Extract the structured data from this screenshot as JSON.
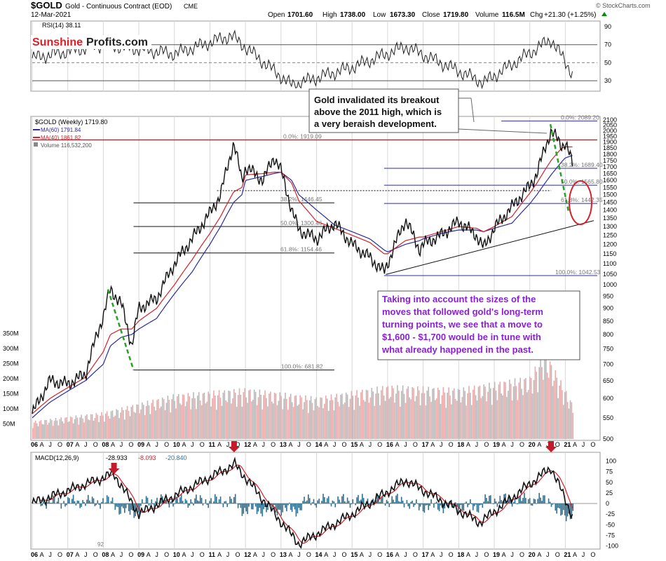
{
  "header": {
    "symbol": "$GOLD",
    "description": "Gold - Continuous Contract (EOD)",
    "exchange": "CME",
    "date": "12-Mar-2021",
    "open_label": "Open",
    "open": "1701.60",
    "high_label": "High",
    "high": "1738.00",
    "low_label": "Low",
    "low": "1673.30",
    "close_label": "Close",
    "close": "1719.80",
    "volume_label": "Volume",
    "volume": "116.5M",
    "chg_label": "Chg",
    "chg": "+21.30 (+1.25%)",
    "chg_icon": "triangle-up-icon",
    "source": "© StockCharts.com"
  },
  "brand": {
    "part1": "Sunshine",
    "part2": "Profits.com",
    "color1": "#e31b23",
    "color2": "#222222"
  },
  "rsi": {
    "label": "RSI(14) 38.11",
    "ticks": [
      "90",
      "70",
      "50",
      "30"
    ]
  },
  "legend": {
    "gold": "$GOLD (Weekly) 1719.80",
    "ma60": "MA(60) 1791.84",
    "ma40": "MA(40) 1861.82",
    "volume": "Volume 116,532,200",
    "ma60_color": "#2b2b9f",
    "ma40_color": "#d6202a"
  },
  "annotations": {
    "top_note": "Gold invalidated its breakout above the 2011 high, which is a very beraish development.",
    "bottom_note": "Taking into account the sizes of the moves that followed gold's long-term turning points, we see that a move to $1,600 - $1,700 would be in tune with what already happened in the past.",
    "note_color": "#8a1fd6"
  },
  "fib_sets": {
    "old": [
      "0.0%: 1919.09",
      "38.2%: 1446.45",
      "50.0%: 1300.46",
      "61.8%: 1154.46",
      "100.0%: 681.82"
    ],
    "new": [
      "0.0%: 2089.20",
      "38.2%: 1689.40",
      "50.0%: 1565.80",
      "61.8%: 1442.35",
      "100.0%: 1042.53"
    ]
  },
  "price_ticks": [
    "2100",
    "2050",
    "2000",
    "1950",
    "1900",
    "1850",
    "1800",
    "1750",
    "1700",
    "1650",
    "1600",
    "1550",
    "1500",
    "1450",
    "1400",
    "1350",
    "1300",
    "1250",
    "1200",
    "1150",
    "1100",
    "1050",
    "1000",
    "950",
    "900",
    "850",
    "800",
    "750",
    "700",
    "650",
    "600",
    "550",
    "500"
  ],
  "volume_ticks": [
    "350M",
    "300M",
    "250M",
    "200M",
    "150M",
    "100M",
    "50M"
  ],
  "macd": {
    "label_prefix": "MACD(12,26,9)",
    "v1": "-28.933",
    "v2": "-8.093",
    "v3": "-20.840",
    "ticks": [
      "100",
      "75",
      "50",
      "25",
      "0",
      "-25",
      "-50",
      "-75",
      "-100"
    ],
    "low_marker": "92"
  },
  "x_axis": {
    "labels": [
      "06",
      "A",
      "J",
      "O",
      "07",
      "A",
      "J",
      "O",
      "08",
      "A",
      "J",
      "O",
      "09",
      "A",
      "J",
      "O",
      "10",
      "A",
      "J",
      "O",
      "11",
      "A",
      "J",
      "O",
      "12",
      "A",
      "J",
      "O",
      "13",
      "A",
      "J",
      "O",
      "14",
      "A",
      "J",
      "O",
      "15",
      "A",
      "J",
      "O",
      "16",
      "A",
      "J",
      "O",
      "17",
      "A",
      "J",
      "O",
      "18",
      "A",
      "J",
      "O",
      "19",
      "A",
      "J",
      "O",
      "20",
      "A",
      "J",
      "O",
      "21",
      "A",
      "J",
      "O"
    ]
  },
  "chart_data": {
    "type": "line",
    "title": "$GOLD Gold - Continuous Contract (EOD)",
    "x": [
      2006.0,
      2006.5,
      2007.0,
      2007.5,
      2008.0,
      2008.2,
      2008.5,
      2008.8,
      2009.0,
      2009.5,
      2010.0,
      2010.5,
      2011.0,
      2011.3,
      2011.67,
      2011.9,
      2012.0,
      2012.5,
      2012.8,
      2013.0,
      2013.3,
      2013.5,
      2014.0,
      2014.5,
      2015.0,
      2015.5,
      2015.9,
      2016.0,
      2016.5,
      2016.9,
      2017.0,
      2017.5,
      2018.0,
      2018.5,
      2018.7,
      2019.0,
      2019.5,
      2020.0,
      2020.2,
      2020.6,
      2020.9,
      2021.0,
      2021.2
    ],
    "series": [
      {
        "values": [
          560,
          650,
          640,
          670,
          870,
          980,
          920,
          760,
          900,
          940,
          1100,
          1230,
          1380,
          1500,
          1890,
          1600,
          1700,
          1600,
          1780,
          1670,
          1400,
          1280,
          1230,
          1320,
          1200,
          1130,
          1060,
          1100,
          1340,
          1170,
          1200,
          1250,
          1330,
          1250,
          1180,
          1290,
          1420,
          1560,
          1650,
          2000,
          1870,
          1900,
          1720
        ]
      },
      {
        "name": "MA(60)",
        "values": [
          550,
          590,
          620,
          650,
          700,
          760,
          790,
          800,
          820,
          860,
          960,
          1060,
          1200,
          1300,
          1450,
          1500,
          1600,
          1630,
          1650,
          1660,
          1600,
          1500,
          1400,
          1310,
          1270,
          1230,
          1170,
          1160,
          1200,
          1220,
          1230,
          1260,
          1280,
          1280,
          1270,
          1290,
          1320,
          1440,
          1500,
          1640,
          1740,
          1770,
          1790
        ]
      },
      {
        "name": "MA(40)",
        "values": [
          560,
          600,
          630,
          660,
          740,
          800,
          820,
          820,
          850,
          900,
          1000,
          1120,
          1260,
          1360,
          1520,
          1550,
          1640,
          1650,
          1660,
          1660,
          1580,
          1460,
          1330,
          1290,
          1250,
          1210,
          1150,
          1150,
          1220,
          1240,
          1240,
          1270,
          1300,
          1290,
          1270,
          1300,
          1360,
          1510,
          1580,
          1750,
          1850,
          1860,
          1860
        ]
      }
    ],
    "ylim": [
      500,
      2100
    ],
    "log_scale": true,
    "horizontal_lines": [
      1919.09
    ],
    "fibonacci_retracement_1": {
      "levels": [
        "0.0%",
        "38.2%",
        "50.0%",
        "61.8%",
        "100.0%"
      ],
      "values": [
        1919.09,
        1446.45,
        1300.46,
        1154.46,
        681.82
      ]
    },
    "fibonacci_retracement_2": {
      "levels": [
        "0.0%",
        "38.2%",
        "50.0%",
        "61.8%",
        "100.0%"
      ],
      "values": [
        2089.2,
        1689.4,
        1565.8,
        1442.35,
        1042.53
      ]
    },
    "rsi": {
      "x": [
        2006.0,
        2008.0,
        2010.0,
        2011.6,
        2013.3,
        2015.0,
        2016.5,
        2018.7,
        2020.6,
        2021.2
      ],
      "values": [
        55,
        70,
        60,
        80,
        25,
        45,
        68,
        28,
        76,
        38.11
      ],
      "ylim": [
        20,
        90
      ]
    },
    "volume_m": {
      "x": [
        2006.0,
        2008.0,
        2010.0,
        2012.0,
        2014.0,
        2016.0,
        2018.0,
        2020.0,
        2020.4,
        2021.2
      ],
      "values": [
        60,
        90,
        150,
        170,
        140,
        180,
        170,
        210,
        300,
        116.5
      ]
    },
    "macd": {
      "x": [
        2006.0,
        2008.3,
        2009.0,
        2011.7,
        2013.5,
        2015.0,
        2016.5,
        2018.6,
        2020.6,
        2021.2
      ],
      "values": [
        0,
        70,
        -25,
        92,
        -95,
        -25,
        55,
        -45,
        85,
        -28.9
      ],
      "ylim": [
        -100,
        110
      ]
    }
  }
}
